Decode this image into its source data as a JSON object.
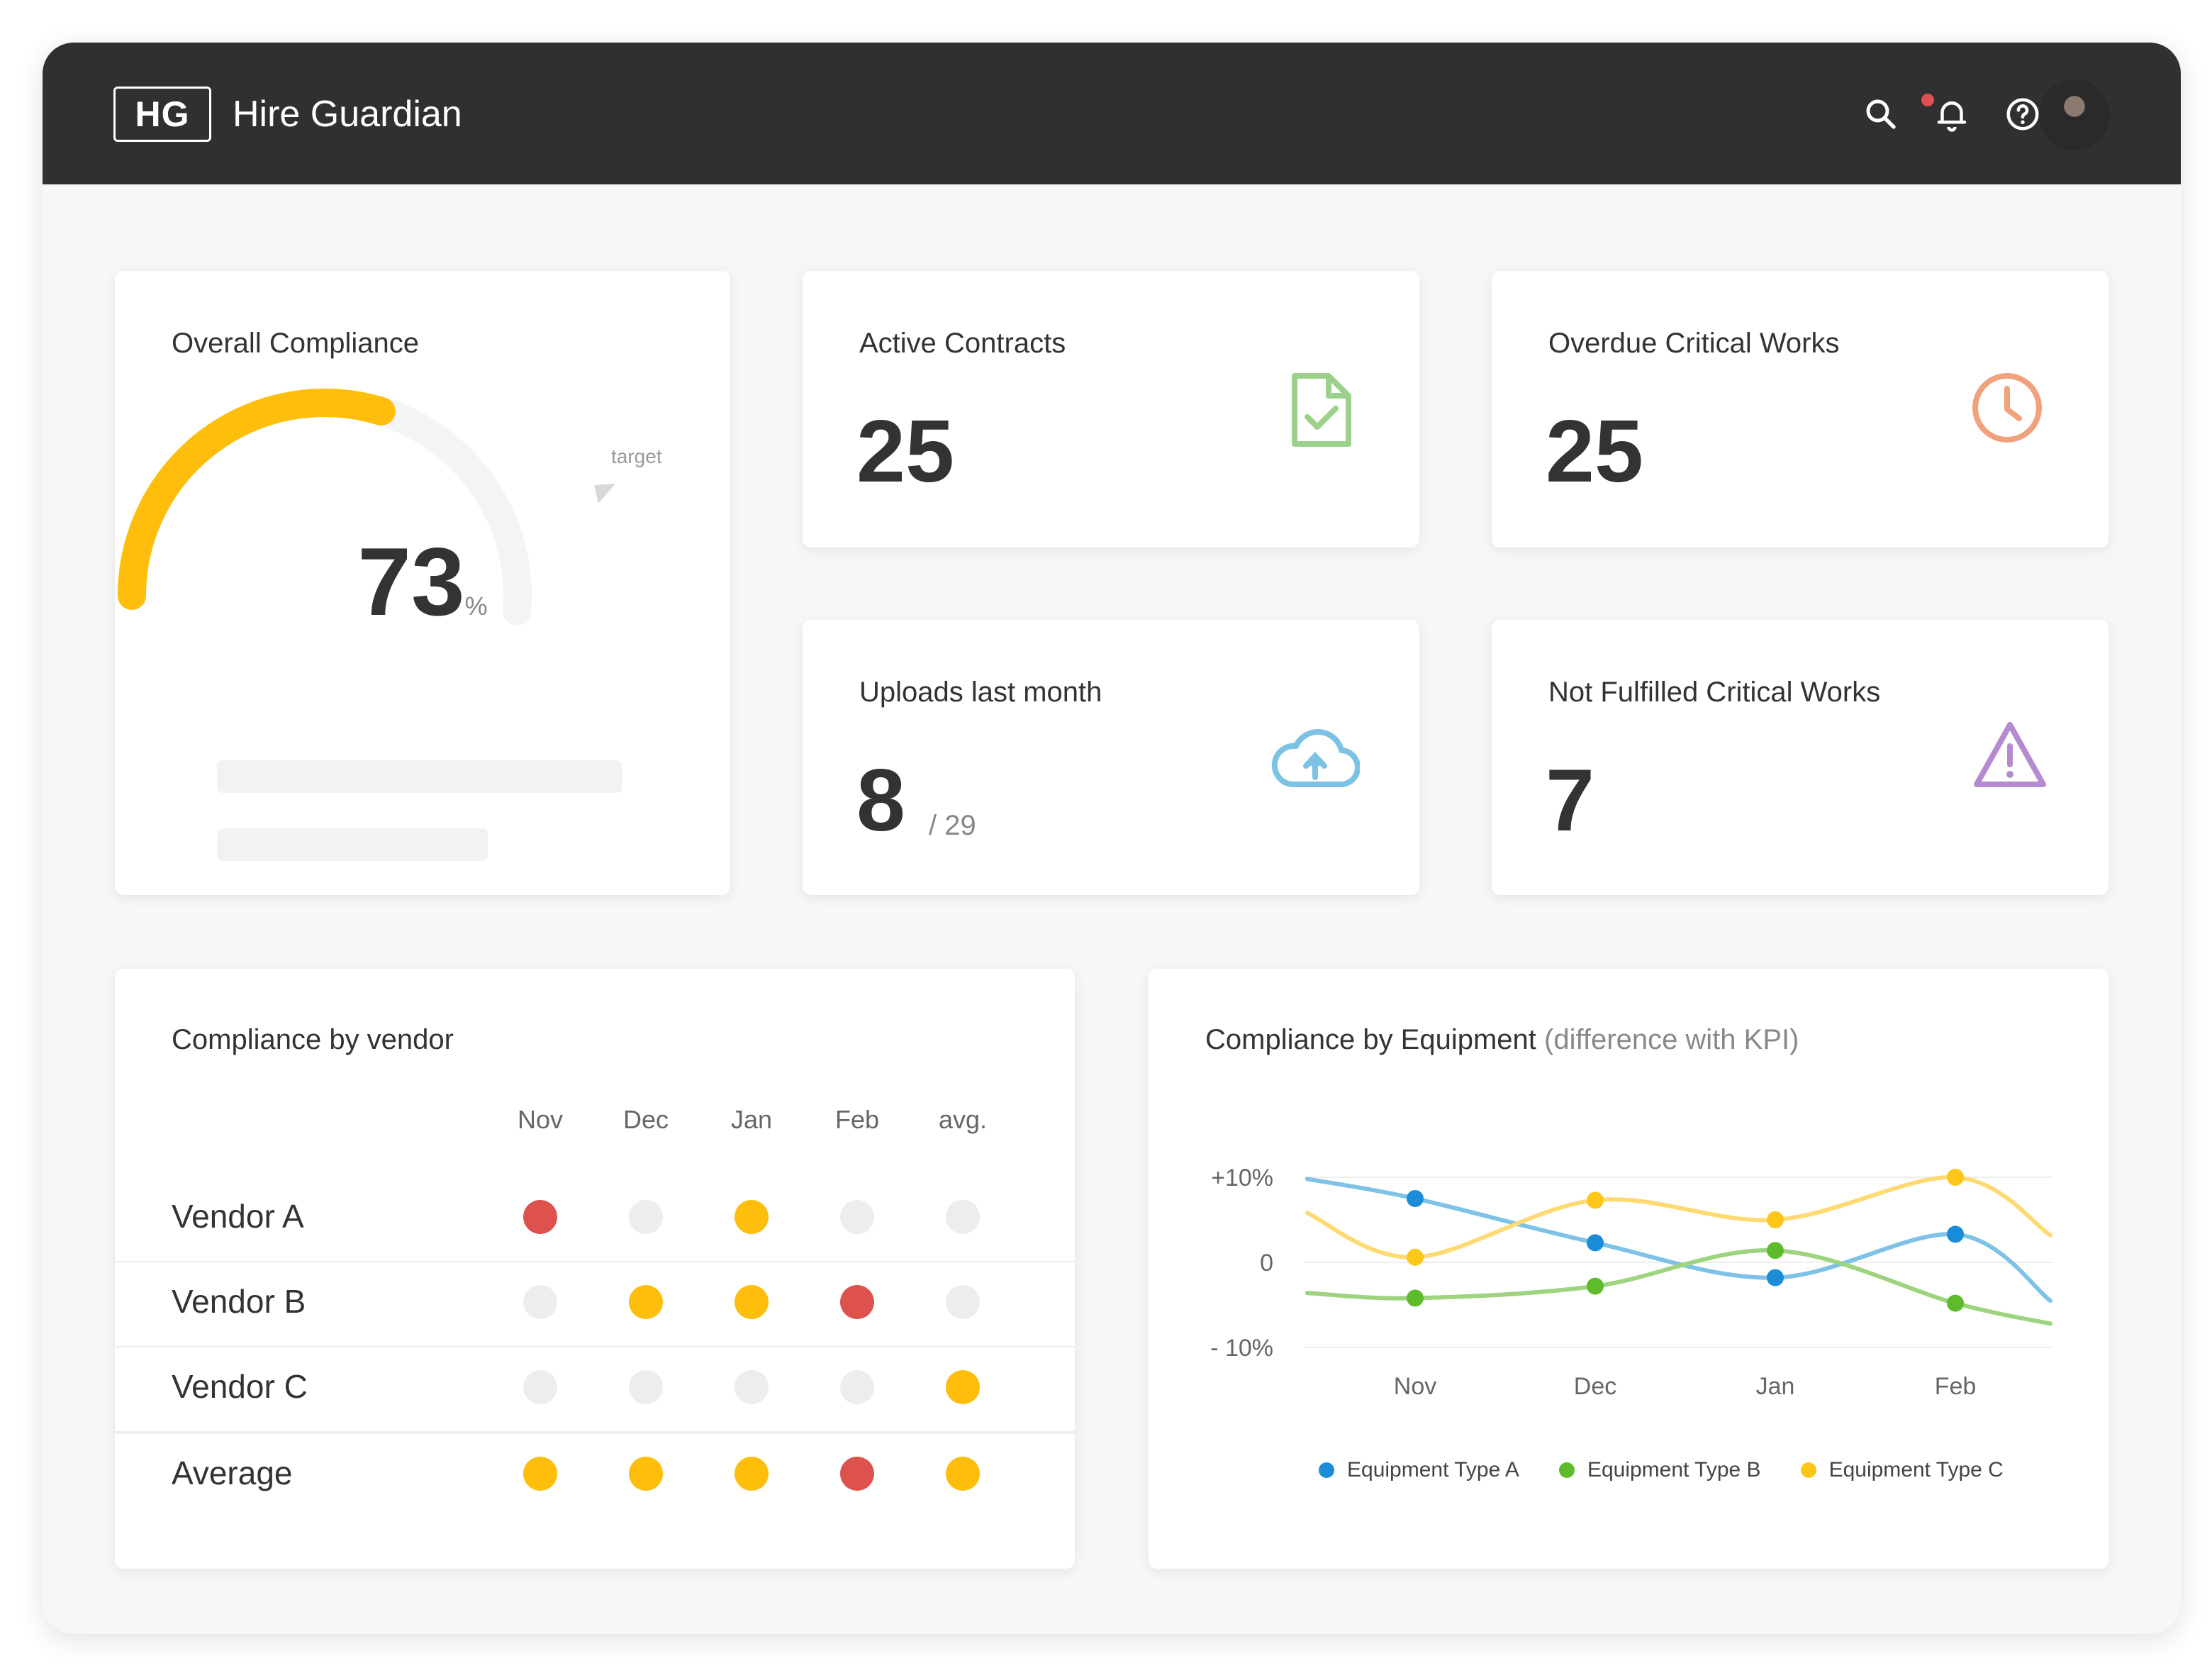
{
  "app": {
    "logo": "HG",
    "title": "Hire Guardian"
  },
  "header": {
    "icons": [
      "search-icon",
      "bell-icon",
      "help-icon"
    ],
    "has_notification": true
  },
  "colors": {
    "yellow": "#FFBE0B",
    "red": "#DD524C",
    "grey": "#EDEDED",
    "type_a": "#1A8CD8",
    "type_b": "#5DBB2C",
    "type_c": "#FFC61A",
    "contracts_icon": "#9BD18A",
    "overdue_icon": "#EFA27B",
    "uploads_icon": "#7CC2E4",
    "warning_icon": "#B58BD0"
  },
  "compliance": {
    "title": "Overall Compliance",
    "value": "73",
    "unit": "%",
    "fraction": 0.73,
    "target_label": "target"
  },
  "stats": {
    "active_contracts": {
      "title": "Active Contracts",
      "value": "25",
      "icon": "document-check-icon"
    },
    "overdue": {
      "title": "Overdue Critical Works",
      "value": "25",
      "icon": "clock-icon"
    },
    "uploads": {
      "title": "Uploads last month",
      "value": "8",
      "total": "/ 29",
      "icon": "cloud-upload-icon"
    },
    "not_fulfilled": {
      "title": "Not Fulfilled Critical Works",
      "value": "7",
      "icon": "warning-icon"
    }
  },
  "vendor_table": {
    "title": "Compliance by vendor",
    "columns": [
      "Nov",
      "Dec",
      "Jan",
      "Feb",
      "avg."
    ],
    "rows": [
      {
        "label": "Vendor A",
        "status": [
          "red",
          "grey",
          "yellow",
          "grey",
          "grey"
        ]
      },
      {
        "label": "Vendor B",
        "status": [
          "grey",
          "yellow",
          "yellow",
          "red",
          "grey"
        ]
      },
      {
        "label": "Vendor C",
        "status": [
          "grey",
          "grey",
          "grey",
          "grey",
          "yellow"
        ]
      },
      {
        "label": "Average",
        "status": [
          "yellow",
          "yellow",
          "yellow",
          "red",
          "yellow"
        ]
      }
    ]
  },
  "chart_data": {
    "type": "line",
    "title": "Compliance by Equipment",
    "subtitle": "(difference with KPI)",
    "categories": [
      "Nov",
      "Dec",
      "Jan",
      "Feb"
    ],
    "y_ticks": [
      "+10%",
      "0",
      "- 10%"
    ],
    "ylim": [
      -10,
      10
    ],
    "series": [
      {
        "name": "Equipment Type A",
        "color": "#1A8CD8",
        "values": [
          7.5,
          2.3,
          -1.8,
          3.3
        ]
      },
      {
        "name": "Equipment Type B",
        "color": "#5DBB2C",
        "values": [
          -4.2,
          -2.8,
          1.4,
          -4.8
        ]
      },
      {
        "name": "Equipment Type C",
        "color": "#FFC61A",
        "values": [
          0.6,
          7.3,
          5.0,
          10.0
        ]
      }
    ],
    "legend": "bottom",
    "grid": true
  }
}
